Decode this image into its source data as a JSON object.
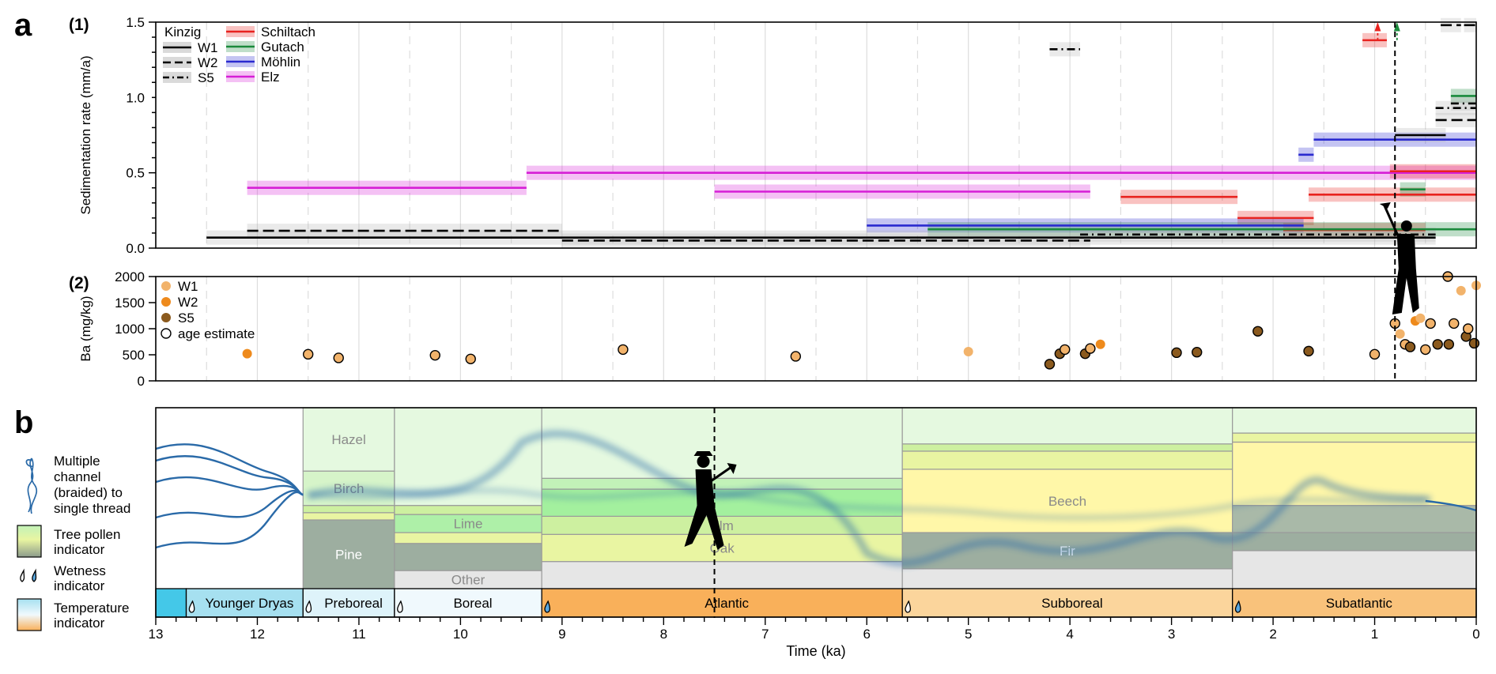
{
  "panel_labels": {
    "a": "a",
    "b": "b",
    "a1": "(1)",
    "a2": "(2)"
  },
  "colors": {
    "W1": "#000000",
    "W2": "#000000",
    "S5": "#000000",
    "Schiltach": "#e8231f",
    "Gutach": "#1a8a3c",
    "Mohlin": "#2a2acf",
    "Elz": "#d61fd6",
    "pt_W1": "#f2b36b",
    "pt_W2": "#ee8a1c",
    "pt_S5": "#8b5a1e",
    "channel": "#2a6aa8",
    "grid": "#dddddd"
  },
  "legend_top": {
    "group_title": "Kinzig",
    "left": [
      "W1",
      "W2",
      "S5"
    ],
    "right": [
      "Schiltach",
      "Gutach",
      "Möhlin",
      "Elz"
    ]
  },
  "legend_ba": [
    "W1",
    "W2",
    "S5",
    "age estimate"
  ],
  "legend_b": [
    "Multiple",
    "channel",
    "(braided) to",
    "single thread",
    "Tree pollen",
    "indicator",
    "Wetness",
    "indicator",
    "Temperature",
    "indicator"
  ],
  "chart_data": [
    {
      "id": "a1",
      "type": "line",
      "ylabel": "Sedimentation rate (mm/a)",
      "xlim": [
        13,
        0
      ],
      "ylim": [
        0,
        1.5
      ],
      "yticks": [
        "0.0",
        "0.5",
        "1.0",
        "1.5"
      ],
      "x_reversed": true,
      "dashed_marker_x": 0.8,
      "segments": [
        {
          "series": "Elz",
          "x1": 12.1,
          "x2": 9.35,
          "y": 0.4
        },
        {
          "series": "Elz",
          "x1": 9.35,
          "x2": 0.0,
          "y": 0.5
        },
        {
          "series": "Elz",
          "x1": 7.5,
          "x2": 3.8,
          "y": 0.375
        },
        {
          "series": "Schiltach",
          "x1": 3.5,
          "x2": 2.35,
          "y": 0.34
        },
        {
          "series": "Schiltach",
          "x1": 2.35,
          "x2": 1.6,
          "y": 0.2
        },
        {
          "series": "Schiltach",
          "x1": 1.65,
          "x2": 0.0,
          "y": 0.355
        },
        {
          "series": "Schiltach",
          "x1": 1.9,
          "x2": 0.5,
          "y": 0.12
        },
        {
          "series": "Schiltach",
          "x1": 1.12,
          "x2": 0.88,
          "y": 1.38
        },
        {
          "series": "Schiltach",
          "x1": 0.85,
          "x2": 0.0,
          "y": 0.51
        },
        {
          "series": "Mohlin",
          "x1": 6.0,
          "x2": 1.7,
          "y": 0.15
        },
        {
          "series": "Mohlin",
          "x1": 1.75,
          "x2": 1.6,
          "y": 0.62
        },
        {
          "series": "Mohlin",
          "x1": 1.6,
          "x2": 0.0,
          "y": 0.72
        },
        {
          "series": "Gutach",
          "x1": 5.4,
          "x2": 0.0,
          "y": 0.125
        },
        {
          "series": "Gutach",
          "x1": 0.75,
          "x2": 0.5,
          "y": 0.39
        },
        {
          "series": "Gutach",
          "x1": 0.25,
          "x2": 0.0,
          "y": 1.01
        },
        {
          "series": "W1",
          "x1": 12.5,
          "x2": 0.4,
          "y": 0.07
        },
        {
          "series": "W1",
          "x1": 0.8,
          "x2": 0.3,
          "y": 0.75
        },
        {
          "series": "W2",
          "x1": 12.1,
          "x2": 9.0,
          "y": 0.115
        },
        {
          "series": "W2",
          "x1": 9.0,
          "x2": 3.8,
          "y": 0.05
        },
        {
          "series": "W2",
          "x1": 0.4,
          "x2": 0.0,
          "y": 0.85
        },
        {
          "series": "W2",
          "x1": 0.35,
          "x2": 0.15,
          "y": 1.48
        },
        {
          "series": "W2",
          "x1": 0.12,
          "x2": 0.0,
          "y": 1.48
        },
        {
          "series": "S5",
          "x1": 4.2,
          "x2": 3.9,
          "y": 1.32
        },
        {
          "series": "S5",
          "x1": 3.9,
          "x2": 0.4,
          "y": 0.09
        },
        {
          "series": "S5",
          "x1": 0.4,
          "x2": 0.0,
          "y": 0.93
        },
        {
          "series": "S5",
          "x1": 0.25,
          "x2": 0.0,
          "y": 0.96
        }
      ]
    },
    {
      "id": "a2",
      "type": "scatter",
      "ylabel": "Ba (mg/kg)",
      "xlim": [
        13,
        0
      ],
      "ylim": [
        0,
        2000
      ],
      "yticks": [
        "0",
        "500",
        "1000",
        "1500",
        "2000"
      ],
      "points": [
        {
          "series": "W2",
          "x": 12.1,
          "y": 520,
          "age_estimate": false
        },
        {
          "series": "W1",
          "x": 11.5,
          "y": 510,
          "age_estimate": true
        },
        {
          "series": "W1",
          "x": 11.2,
          "y": 440,
          "age_estimate": true
        },
        {
          "series": "W1",
          "x": 10.25,
          "y": 490,
          "age_estimate": true
        },
        {
          "series": "W1",
          "x": 9.9,
          "y": 420,
          "age_estimate": true
        },
        {
          "series": "W1",
          "x": 8.4,
          "y": 600,
          "age_estimate": true
        },
        {
          "series": "W1",
          "x": 6.7,
          "y": 470,
          "age_estimate": true
        },
        {
          "series": "W1",
          "x": 5.0,
          "y": 560,
          "age_estimate": false
        },
        {
          "series": "S5",
          "x": 4.2,
          "y": 320,
          "age_estimate": true
        },
        {
          "series": "S5",
          "x": 4.1,
          "y": 520,
          "age_estimate": true
        },
        {
          "series": "W1",
          "x": 4.05,
          "y": 600,
          "age_estimate": true
        },
        {
          "series": "S5",
          "x": 3.85,
          "y": 520,
          "age_estimate": true
        },
        {
          "series": "W1",
          "x": 3.8,
          "y": 620,
          "age_estimate": true
        },
        {
          "series": "W2",
          "x": 3.7,
          "y": 700,
          "age_estimate": false
        },
        {
          "series": "S5",
          "x": 2.95,
          "y": 540,
          "age_estimate": true
        },
        {
          "series": "S5",
          "x": 2.75,
          "y": 550,
          "age_estimate": true
        },
        {
          "series": "S5",
          "x": 2.15,
          "y": 950,
          "age_estimate": true
        },
        {
          "series": "S5",
          "x": 1.65,
          "y": 570,
          "age_estimate": true
        },
        {
          "series": "W1",
          "x": 1.0,
          "y": 510,
          "age_estimate": true
        },
        {
          "series": "W1",
          "x": 0.8,
          "y": 1100,
          "age_estimate": true
        },
        {
          "series": "W1",
          "x": 0.75,
          "y": 900,
          "age_estimate": false
        },
        {
          "series": "W1",
          "x": 0.7,
          "y": 700,
          "age_estimate": true
        },
        {
          "series": "S5",
          "x": 0.65,
          "y": 650,
          "age_estimate": true
        },
        {
          "series": "W2",
          "x": 0.6,
          "y": 1150,
          "age_estimate": false
        },
        {
          "series": "W1",
          "x": 0.55,
          "y": 1200,
          "age_estimate": false
        },
        {
          "series": "W1",
          "x": 0.5,
          "y": 600,
          "age_estimate": true
        },
        {
          "series": "W1",
          "x": 0.45,
          "y": 1100,
          "age_estimate": true
        },
        {
          "series": "S5",
          "x": 0.38,
          "y": 700,
          "age_estimate": true
        },
        {
          "series": "W1",
          "x": 0.28,
          "y": 2000,
          "age_estimate": true
        },
        {
          "series": "S5",
          "x": 0.27,
          "y": 700,
          "age_estimate": true
        },
        {
          "series": "W1",
          "x": 0.22,
          "y": 1100,
          "age_estimate": true
        },
        {
          "series": "W1",
          "x": 0.15,
          "y": 1730,
          "age_estimate": false
        },
        {
          "series": "S5",
          "x": 0.1,
          "y": 850,
          "age_estimate": true
        },
        {
          "series": "W1",
          "x": 0.08,
          "y": 1000,
          "age_estimate": true
        },
        {
          "series": "S5",
          "x": 0.02,
          "y": 720,
          "age_estimate": true
        },
        {
          "series": "W1",
          "x": 0.0,
          "y": 1830,
          "age_estimate": false
        }
      ]
    },
    {
      "id": "b",
      "type": "area",
      "xlabel": "Time (ka)",
      "xlim": [
        13,
        0
      ],
      "xticks": [
        "13",
        "12",
        "11",
        "10",
        "9",
        "8",
        "7",
        "6",
        "5",
        "4",
        "3",
        "2",
        "1",
        "0"
      ],
      "periods": [
        {
          "label": "",
          "x1": 13.0,
          "x2": 12.7,
          "color": "#44c8e8",
          "wet": 0
        },
        {
          "label": "Younger Dryas",
          "x1": 12.7,
          "x2": 11.55,
          "color": "#a6e0f0",
          "wet": 1
        },
        {
          "label": "Preboreal",
          "x1": 11.55,
          "x2": 10.65,
          "color": "#def3fa",
          "wet": 1
        },
        {
          "label": "Boreal",
          "x1": 10.65,
          "x2": 9.2,
          "color": "#f0f9fd",
          "wet": 1
        },
        {
          "label": "Atlantic",
          "x1": 9.2,
          "x2": 5.65,
          "color": "#f9b05a",
          "wet": 2
        },
        {
          "label": "Subboreal",
          "x1": 5.65,
          "x2": 2.4,
          "color": "#fbd59c",
          "wet": 1
        },
        {
          "label": "Subatlantic",
          "x1": 2.4,
          "x2": 0.0,
          "color": "#f9c27b",
          "wet": 2
        }
      ],
      "pollen_zones": [
        {
          "x1": 11.55,
          "x2": 10.65,
          "layers": [
            {
              "label": "Pine",
              "frac": 0.38,
              "color": "#9daea0"
            },
            {
              "label": "",
              "frac": 0.04,
              "color": "#e9f5a2"
            },
            {
              "label": "",
              "frac": 0.04,
              "color": "#cdf0a0"
            },
            {
              "label": "Birch",
              "frac": 0.19,
              "color": "#d6f4c9"
            },
            {
              "label": "Hazel",
              "frac": 0.35,
              "color": "#e5f9e0"
            }
          ]
        },
        {
          "x1": 10.65,
          "x2": 9.2,
          "layers": [
            {
              "label": "Other",
              "frac": 0.1,
              "color": "#e6e6e6"
            },
            {
              "label": "",
              "frac": 0.15,
              "color": "#9daea0"
            },
            {
              "label": "",
              "frac": 0.06,
              "color": "#e9f5a2"
            },
            {
              "label": "Lime",
              "frac": 0.1,
              "color": "#aef0a8"
            },
            {
              "label": "",
              "frac": 0.05,
              "color": "#cdf0a0"
            },
            {
              "label": "",
              "frac": 0.54,
              "color": "#e5f9e0"
            }
          ]
        },
        {
          "x1": 9.2,
          "x2": 5.65,
          "layers": [
            {
              "label": "",
              "frac": 0.15,
              "color": "#e6e6e6"
            },
            {
              "label": "Oak",
              "frac": 0.15,
              "color": "#e9f5a2"
            },
            {
              "label": "Elm",
              "frac": 0.1,
              "color": "#cdf0a0"
            },
            {
              "label": "",
              "frac": 0.15,
              "color": "#a3f09e"
            },
            {
              "label": "",
              "frac": 0.06,
              "color": "#c2f2b8"
            },
            {
              "label": "",
              "frac": 0.39,
              "color": "#e5f9e0"
            }
          ]
        },
        {
          "x1": 5.65,
          "x2": 2.4,
          "layers": [
            {
              "label": "",
              "frac": 0.11,
              "color": "#e6e6e6"
            },
            {
              "label": "Fir",
              "frac": 0.2,
              "color": "#9daea0"
            },
            {
              "label": "Beech",
              "frac": 0.35,
              "color": "#fff7a8"
            },
            {
              "label": "",
              "frac": 0.1,
              "color": "#e9f5a2"
            },
            {
              "label": "",
              "frac": 0.04,
              "color": "#cdf0a0"
            },
            {
              "label": "",
              "frac": 0.2,
              "color": "#e5f9e0"
            }
          ]
        },
        {
          "x1": 2.4,
          "x2": 0.0,
          "layers": [
            {
              "label": "",
              "frac": 0.21,
              "color": "#e6e6e6"
            },
            {
              "label": "",
              "frac": 0.1,
              "color": "#9daea0"
            },
            {
              "label": "",
              "frac": 0.15,
              "color": "#a9b9a8"
            },
            {
              "label": "",
              "frac": 0.35,
              "color": "#fff7a8"
            },
            {
              "label": "",
              "frac": 0.05,
              "color": "#e9f5a2"
            },
            {
              "label": "",
              "frac": 0.14,
              "color": "#e5f9e0"
            }
          ]
        }
      ],
      "dashed_marker_x": 7.5
    }
  ]
}
